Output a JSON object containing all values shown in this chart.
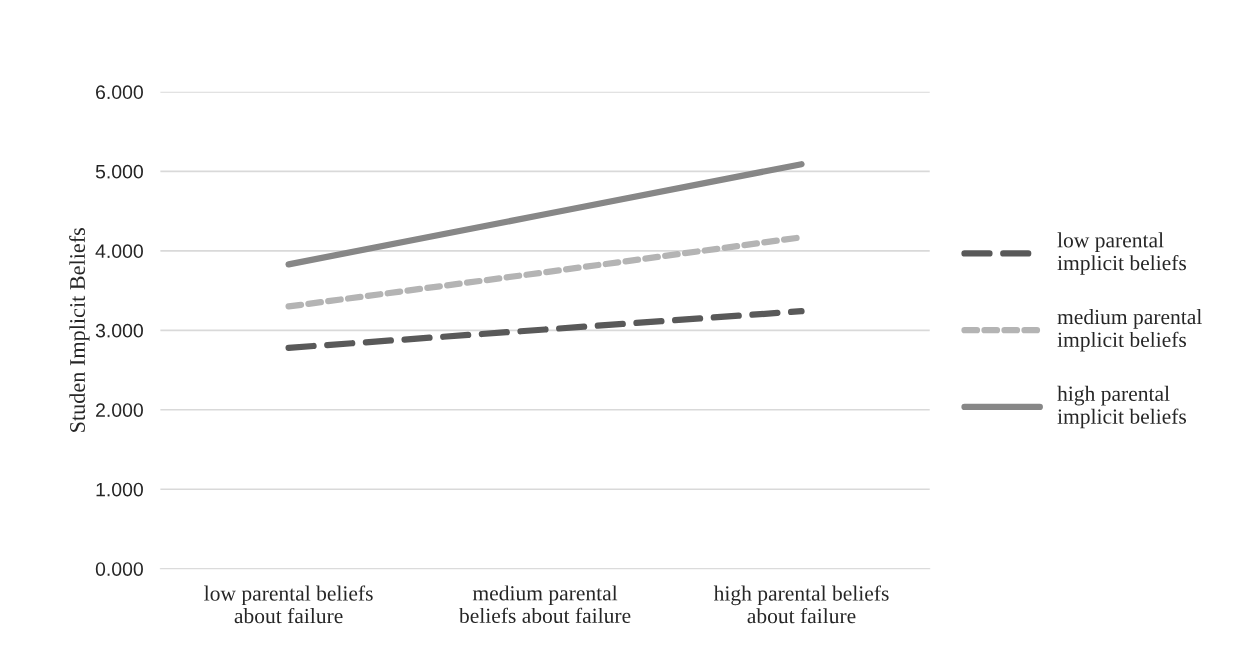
{
  "chart_data": {
    "type": "line",
    "ylabel": "Studen Implicit Beliefs",
    "categories": [
      "low parental beliefs\nabout failure",
      "medium parental\nbeliefs about failure",
      "high parental beliefs\nabout failure"
    ],
    "series": [
      {
        "name": "low parental\nimplicit beliefs",
        "color": "#595959",
        "line_style": "dashed",
        "values": [
          2.78,
          3.01,
          3.24
        ]
      },
      {
        "name": "medium parental\nimplicit beliefs",
        "color": "#b4b4b4",
        "line_style": "dotted",
        "values": [
          3.3,
          3.73,
          4.17
        ]
      },
      {
        "name": "high parental\nimplicit beliefs",
        "color": "#878787",
        "line_style": "solid",
        "values": [
          3.83,
          4.46,
          5.09
        ]
      }
    ],
    "ylim": [
      0,
      6
    ],
    "yticks": [
      {
        "value": 0,
        "label": "0.000"
      },
      {
        "value": 1,
        "label": "1.000"
      },
      {
        "value": 2,
        "label": "2.000"
      },
      {
        "value": 3,
        "label": "3.000"
      },
      {
        "value": 4,
        "label": "4.000"
      },
      {
        "value": 5,
        "label": "5.000"
      },
      {
        "value": 6,
        "label": "6.000"
      }
    ],
    "grid": "y",
    "legend": "right",
    "marker": "none"
  }
}
